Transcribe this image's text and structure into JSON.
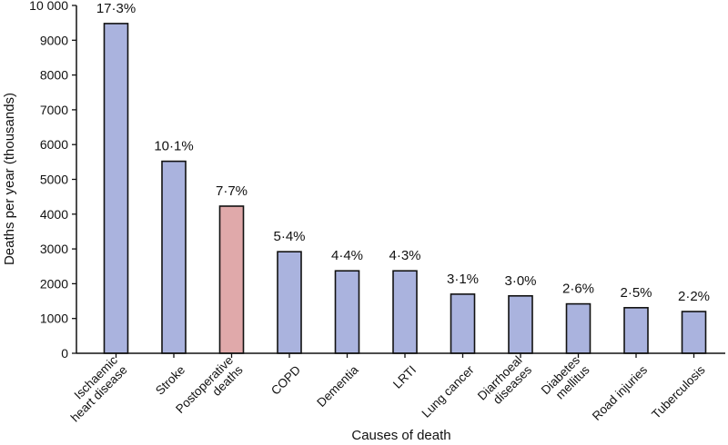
{
  "chart_data": {
    "type": "bar",
    "title": "",
    "xlabel": "Causes of death",
    "ylabel": "Deaths per year (thousands)",
    "ylim": [
      0,
      10000
    ],
    "yticks": [
      0,
      1000,
      2000,
      3000,
      4000,
      5000,
      6000,
      7000,
      8000,
      9000,
      10000
    ],
    "ytick_labels": [
      "0",
      "1000",
      "2000",
      "3000",
      "4000",
      "5000",
      "6000",
      "7000",
      "8000",
      "9000",
      "10 000"
    ],
    "categories": [
      [
        "Ischaemic",
        "heart disease"
      ],
      [
        "Stroke"
      ],
      [
        "Postoperative",
        "deaths"
      ],
      [
        "COPD"
      ],
      [
        "Dementia"
      ],
      [
        "LRTI"
      ],
      [
        "Lung cancer"
      ],
      [
        "Diarrhoeal",
        "diseases"
      ],
      [
        "Diabetes",
        "mellitus"
      ],
      [
        "Road injuries"
      ],
      [
        "Tuberculosis"
      ]
    ],
    "values": [
      9480,
      5520,
      4230,
      2920,
      2370,
      2370,
      1700,
      1650,
      1420,
      1310,
      1200
    ],
    "labels": [
      "17·3%",
      "10·1%",
      "7·7%",
      "5·4%",
      "4·4%",
      "4·3%",
      "3·1%",
      "3·0%",
      "2·6%",
      "2·5%",
      "2·2%"
    ],
    "highlight_index": 2,
    "colors": {
      "bar": "#aab3de",
      "highlight": "#e0a9aa",
      "stroke": "#111111"
    }
  }
}
